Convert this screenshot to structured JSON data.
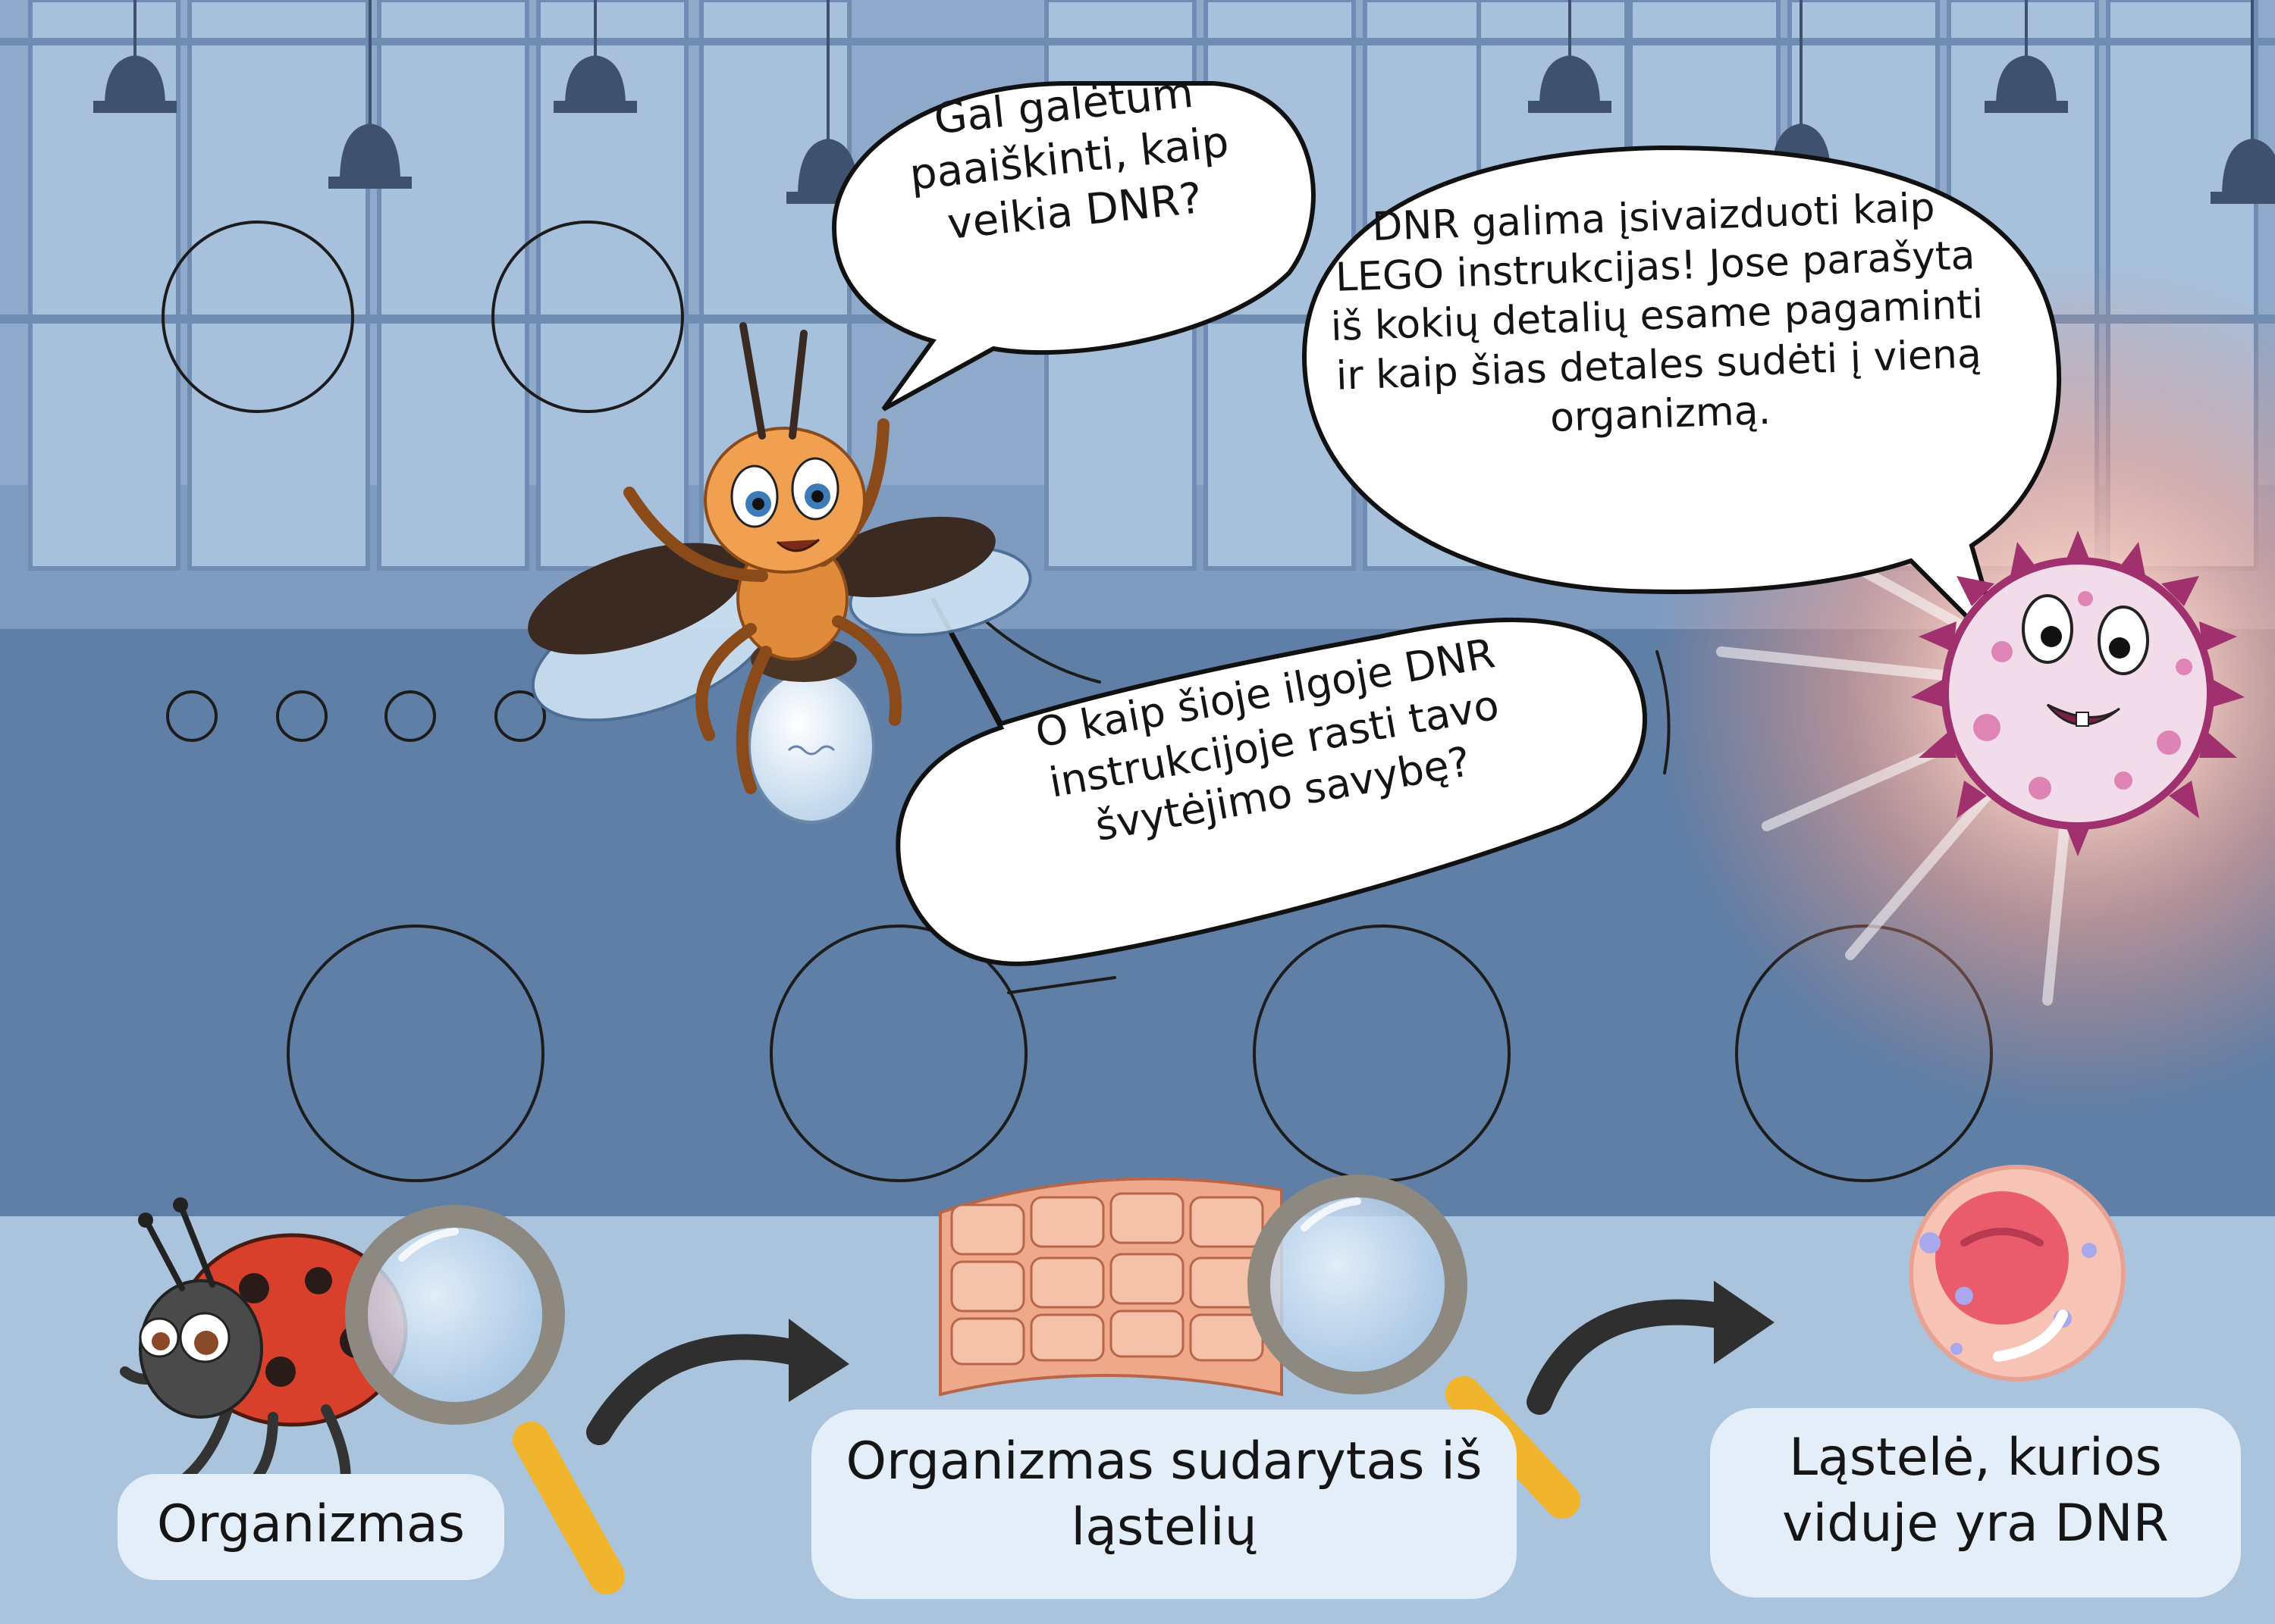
{
  "bubbles": {
    "firefly_question": "Gal galėtum paaiškinti, kaip veikia DNR?",
    "cell_answer": "DNR galima įsivaizduoti kaip LEGO instrukcijas! Jose parašyta iš kokių detalių esame pagaminti ir kaip šias detales sudėti į vieną organizmą.",
    "firefly_followup": "O kaip šioje ilgoje DNR instrukcijoje rasti tavo švytėjimo savybę?"
  },
  "captions": {
    "organism": "Organizmas",
    "tissue": "Organizmas sudarytas iš ląstelių",
    "cell": "Ląstelė, kurios viduje yra DNR"
  },
  "colors": {
    "wall_upper": "#8ea9c9",
    "wall_lower": "#5f7fa6",
    "floor": "#a9c4dc",
    "magnifier_ring": "#8d8880",
    "magnifier_handle": "#f0b52c",
    "arrow": "#2f2f2f",
    "caption_box": "#e4eef9"
  }
}
